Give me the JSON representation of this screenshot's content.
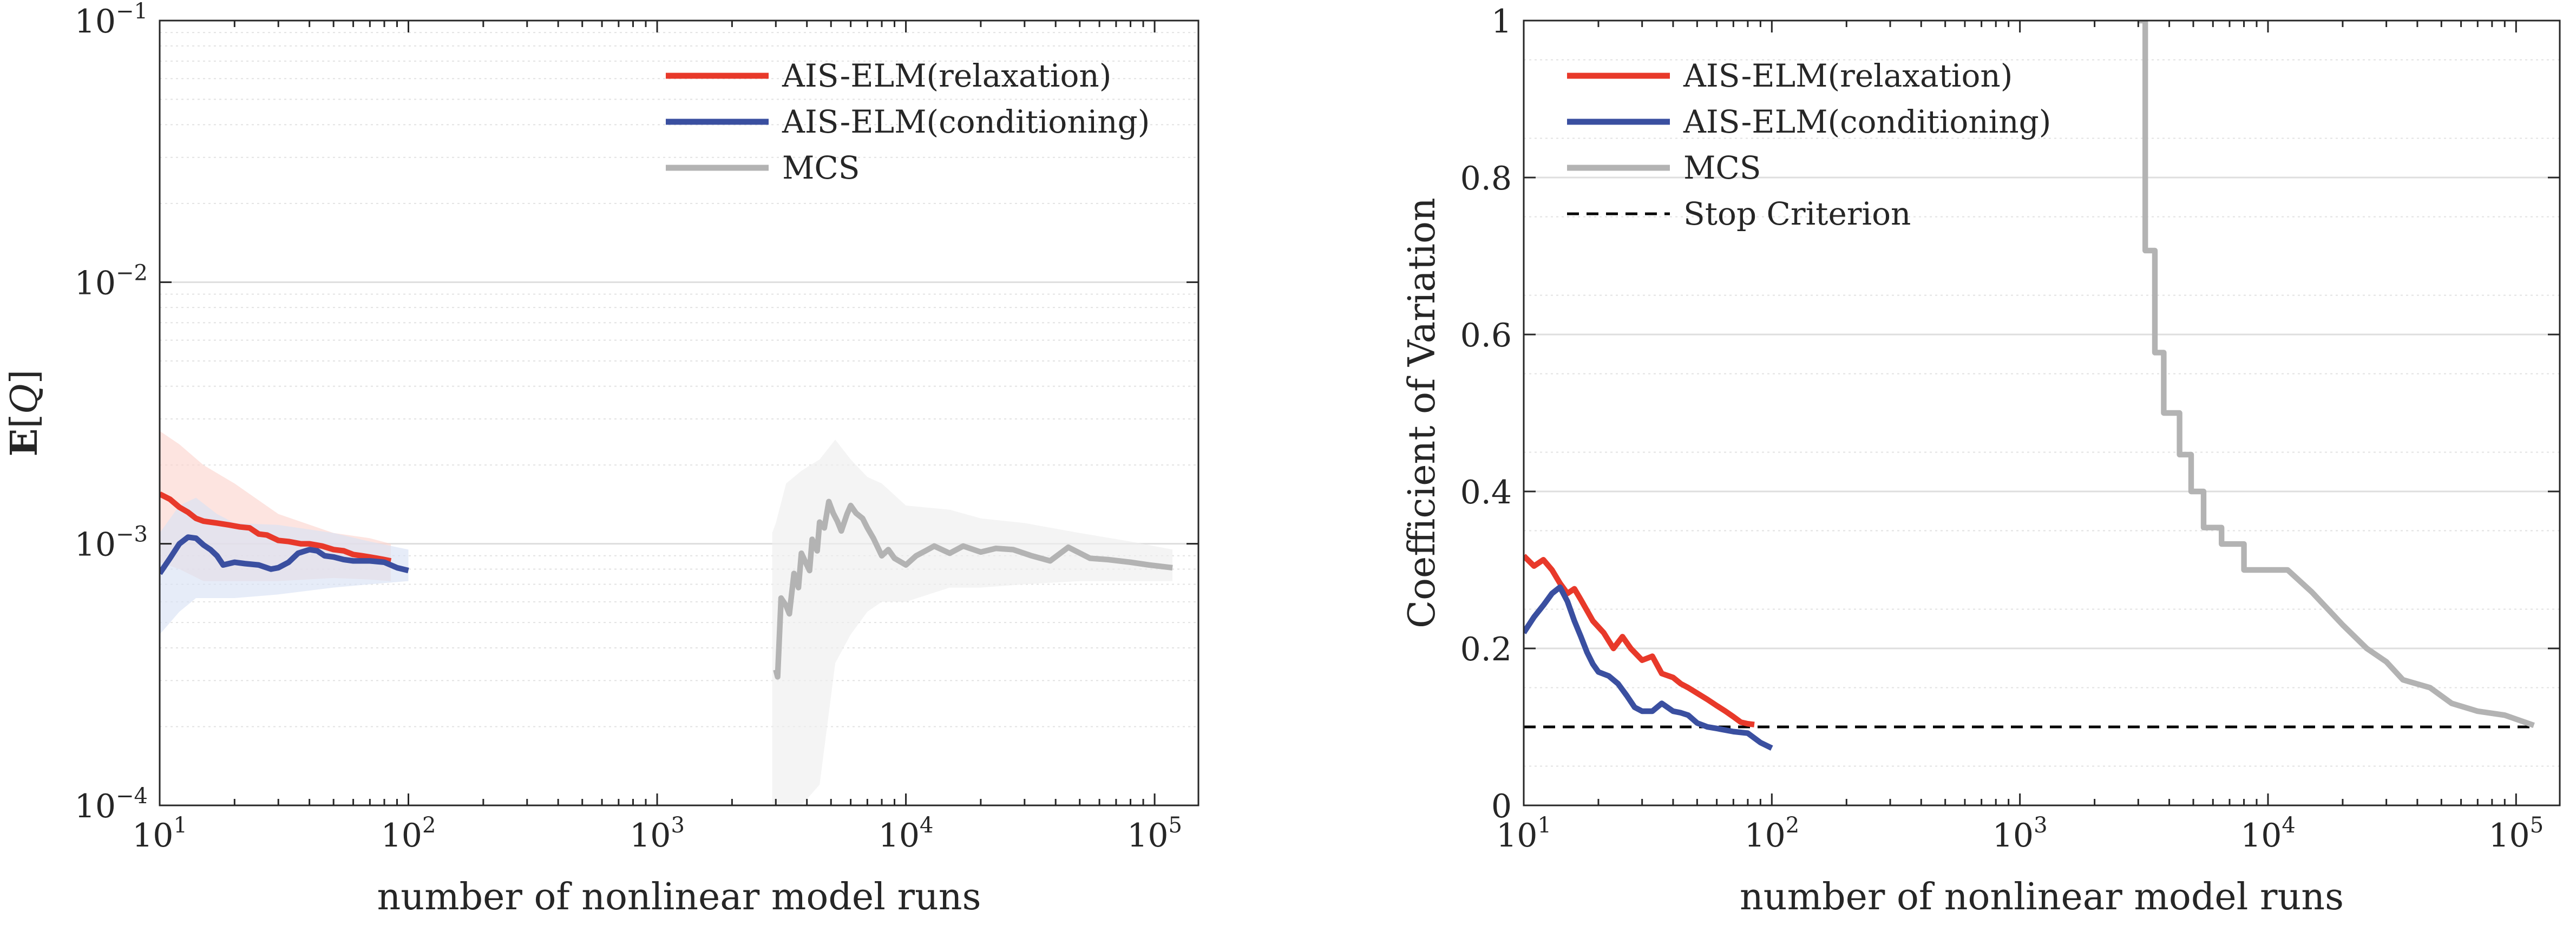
{
  "figure_title": "",
  "chart_data": [
    {
      "type": "line",
      "xscale": "log",
      "yscale": "log",
      "xlim": [
        10,
        150000
      ],
      "ylim": [
        0.0001,
        0.1
      ],
      "xlabel": "number of nonlinear model runs",
      "ylabel_main": "E",
      "ylabel_arg": "Q",
      "xticks": [
        {
          "value": 10,
          "base": "10",
          "exp": "1"
        },
        {
          "value": 100,
          "base": "10",
          "exp": "2"
        },
        {
          "value": 1000,
          "base": "10",
          "exp": "3"
        },
        {
          "value": 10000,
          "base": "10",
          "exp": "4"
        },
        {
          "value": 100000,
          "base": "10",
          "exp": "5"
        }
      ],
      "yticks": [
        {
          "value": 0.0001,
          "base": "10",
          "exp": "−4"
        },
        {
          "value": 0.001,
          "base": "10",
          "exp": "−3"
        },
        {
          "value": 0.01,
          "base": "10",
          "exp": "−2"
        },
        {
          "value": 0.1,
          "base": "10",
          "exp": "−1"
        }
      ],
      "grid": true,
      "legend_position": "top-right",
      "legend": [
        {
          "label": "AIS-ELM(relaxation)",
          "color": "#e8392a",
          "style": "solid"
        },
        {
          "label": "AIS-ELM(conditioning)",
          "color": "#3a4fa0",
          "style": "solid"
        },
        {
          "label": "MCS",
          "color": "#b3b3b3",
          "style": "solid"
        }
      ],
      "bands": [
        {
          "name": "AIS-ELM(relaxation) band",
          "color": "#fcd6cf",
          "x": [
            10,
            12,
            15,
            20,
            30,
            50,
            70,
            85
          ],
          "lower": [
            0.00085,
            0.0008,
            0.00072,
            0.00072,
            0.00072,
            0.00074,
            0.00073,
            0.00072
          ],
          "upper": [
            0.0027,
            0.0024,
            0.002,
            0.0017,
            0.0013,
            0.0011,
            0.00105,
            0.001
          ]
        },
        {
          "name": "AIS-ELM(conditioning) band",
          "color": "#d9e2f5",
          "x": [
            10,
            12,
            14,
            17,
            20,
            30,
            50,
            70,
            100
          ],
          "lower": [
            0.00045,
            0.00055,
            0.00062,
            0.00062,
            0.00062,
            0.00064,
            0.00068,
            0.0007,
            0.00072
          ],
          "upper": [
            0.0011,
            0.0014,
            0.0015,
            0.0013,
            0.0012,
            0.00118,
            0.0011,
            0.00102,
            0.00095
          ]
        },
        {
          "name": "MCS band",
          "color": "#eeeeee",
          "x": [
            2900,
            3000,
            3300,
            3800,
            4500,
            5200,
            6000,
            7000,
            8000,
            10000,
            15000,
            20000,
            30000,
            50000,
            80000,
            118000
          ],
          "lower": [
            0.0001,
            0.0001,
            0.0001,
            0.0001,
            0.00012,
            0.00035,
            0.00045,
            0.00055,
            0.0006,
            0.0006,
            0.00068,
            0.00068,
            0.0007,
            0.00072,
            0.00072,
            0.00072
          ],
          "upper": [
            0.0011,
            0.0012,
            0.0017,
            0.0019,
            0.0021,
            0.0025,
            0.0021,
            0.0018,
            0.0017,
            0.0014,
            0.00135,
            0.00125,
            0.0012,
            0.0011,
            0.00102,
            0.00095
          ]
        }
      ],
      "series": [
        {
          "name": "AIS-ELM(relaxation)",
          "color": "#e8392a",
          "width": 8,
          "x": [
            10,
            11,
            12,
            13,
            14,
            15,
            17,
            19,
            21,
            23,
            25,
            27,
            30,
            33,
            37,
            40,
            45,
            50,
            55,
            60,
            65,
            70,
            75,
            80,
            85
          ],
          "y": [
            0.00155,
            0.00148,
            0.00138,
            0.00132,
            0.00125,
            0.00122,
            0.0012,
            0.00118,
            0.00116,
            0.00115,
            0.00109,
            0.00108,
            0.00103,
            0.00102,
            0.001,
            0.001,
            0.00098,
            0.00095,
            0.00094,
            0.00091,
            0.0009,
            0.00089,
            0.00088,
            0.00087,
            0.00086
          ]
        },
        {
          "name": "AIS-ELM(conditioning)",
          "color": "#3a4fa0",
          "width": 8,
          "x": [
            10,
            11,
            12,
            13,
            14,
            15,
            16,
            17,
            18,
            20,
            22,
            25,
            28,
            30,
            33,
            36,
            40,
            43,
            46,
            50,
            55,
            60,
            70,
            80,
            90,
            100
          ],
          "y": [
            0.00077,
            0.00088,
            0.001,
            0.00106,
            0.00105,
            0.00099,
            0.00095,
            0.0009,
            0.00083,
            0.00085,
            0.00084,
            0.00083,
            0.0008,
            0.00081,
            0.00085,
            0.00092,
            0.00095,
            0.00094,
            0.0009,
            0.00089,
            0.00087,
            0.00086,
            0.00086,
            0.00085,
            0.00081,
            0.00079
          ]
        },
        {
          "name": "MCS",
          "color": "#b3b3b3",
          "width": 8,
          "x": [
            3000,
            3050,
            3150,
            3300,
            3400,
            3550,
            3700,
            3800,
            3950,
            4100,
            4200,
            4400,
            4500,
            4700,
            4900,
            5100,
            5300,
            5500,
            5800,
            6000,
            6300,
            6700,
            7000,
            7400,
            8000,
            8500,
            9000,
            10000,
            11000,
            12000,
            13000,
            15000,
            17000,
            20000,
            23000,
            27000,
            32000,
            38000,
            45000,
            55000,
            65000,
            80000,
            95000,
            118000
          ],
          "y": [
            0.00033,
            0.00031,
            0.00062,
            0.00058,
            0.00054,
            0.00077,
            0.00068,
            0.00092,
            0.00085,
            0.00079,
            0.00104,
            0.00094,
            0.00121,
            0.00115,
            0.00145,
            0.00131,
            0.00122,
            0.00112,
            0.0013,
            0.0014,
            0.00131,
            0.00125,
            0.00115,
            0.00105,
            0.0009,
            0.00095,
            0.00088,
            0.00083,
            0.0009,
            0.00094,
            0.00098,
            0.00092,
            0.00098,
            0.00093,
            0.00096,
            0.00095,
            0.0009,
            0.00086,
            0.00097,
            0.00088,
            0.00087,
            0.00085,
            0.00083,
            0.00081
          ]
        }
      ]
    },
    {
      "type": "line",
      "xscale": "log",
      "yscale": "linear",
      "xlim": [
        10,
        150000
      ],
      "ylim": [
        0,
        1
      ],
      "xlabel": "number of nonlinear model runs",
      "ylabel": "Coefficient of Variation",
      "xticks": [
        {
          "value": 10,
          "base": "10",
          "exp": "1"
        },
        {
          "value": 100,
          "base": "10",
          "exp": "2"
        },
        {
          "value": 1000,
          "base": "10",
          "exp": "3"
        },
        {
          "value": 10000,
          "base": "10",
          "exp": "4"
        },
        {
          "value": 100000,
          "base": "10",
          "exp": "5"
        }
      ],
      "yticks": [
        {
          "value": 0,
          "label": "0"
        },
        {
          "value": 0.2,
          "label": "0.2"
        },
        {
          "value": 0.4,
          "label": "0.4"
        },
        {
          "value": 0.6,
          "label": "0.6"
        },
        {
          "value": 0.8,
          "label": "0.8"
        },
        {
          "value": 1,
          "label": "1"
        }
      ],
      "grid": true,
      "legend_position": "top-left",
      "legend": [
        {
          "label": "AIS-ELM(relaxation)",
          "color": "#e8392a",
          "style": "solid"
        },
        {
          "label": "AIS-ELM(conditioning)",
          "color": "#3a4fa0",
          "style": "solid"
        },
        {
          "label": "MCS",
          "color": "#b3b3b3",
          "style": "solid"
        },
        {
          "label": "Stop Criterion",
          "color": "#000000",
          "style": "dashed"
        }
      ],
      "hline": {
        "name": "Stop Criterion",
        "y": 0.1,
        "x": [
          10,
          118000
        ],
        "color": "#000000"
      },
      "series": [
        {
          "name": "AIS-ELM(relaxation)",
          "color": "#e8392a",
          "width": 8,
          "x": [
            10,
            11,
            12,
            13,
            14,
            15,
            16,
            17,
            19,
            21,
            23,
            25,
            27,
            30,
            33,
            36,
            40,
            43,
            46,
            50,
            55,
            60,
            65,
            70,
            75,
            80,
            85
          ],
          "y": [
            0.318,
            0.305,
            0.313,
            0.3,
            0.283,
            0.27,
            0.276,
            0.262,
            0.235,
            0.22,
            0.2,
            0.215,
            0.2,
            0.185,
            0.19,
            0.168,
            0.163,
            0.155,
            0.15,
            0.143,
            0.135,
            0.127,
            0.12,
            0.113,
            0.106,
            0.104,
            0.103
          ]
        },
        {
          "name": "AIS-ELM(conditioning)",
          "color": "#3a4fa0",
          "width": 8,
          "x": [
            10,
            11,
            12,
            13,
            14,
            15,
            16,
            17,
            18,
            19,
            20,
            22,
            24,
            26,
            28,
            30,
            33,
            36,
            40,
            43,
            46,
            50,
            55,
            60,
            70,
            80,
            90,
            100
          ],
          "y": [
            0.22,
            0.24,
            0.255,
            0.27,
            0.278,
            0.26,
            0.235,
            0.215,
            0.195,
            0.18,
            0.17,
            0.165,
            0.155,
            0.14,
            0.125,
            0.12,
            0.12,
            0.13,
            0.12,
            0.118,
            0.115,
            0.105,
            0.1,
            0.098,
            0.094,
            0.092,
            0.08,
            0.073
          ]
        },
        {
          "name": "MCS",
          "color": "#b3b3b3",
          "width": 8,
          "x": [
            3000,
            3200,
            3200,
            3500,
            3500,
            3800,
            3800,
            4400,
            4400,
            4900,
            4900,
            5500,
            5500,
            6500,
            6500,
            8000,
            8000,
            9500,
            12000,
            15000,
            20000,
            25000,
            30000,
            35000,
            45000,
            55000,
            70000,
            90000,
            118000
          ],
          "y": [
            1.0,
            1.0,
            0.707,
            0.707,
            0.577,
            0.577,
            0.5,
            0.5,
            0.447,
            0.447,
            0.4,
            0.4,
            0.354,
            0.354,
            0.333,
            0.333,
            0.3,
            0.3,
            0.3,
            0.272,
            0.23,
            0.2,
            0.183,
            0.16,
            0.15,
            0.13,
            0.12,
            0.115,
            0.102
          ]
        }
      ]
    }
  ]
}
